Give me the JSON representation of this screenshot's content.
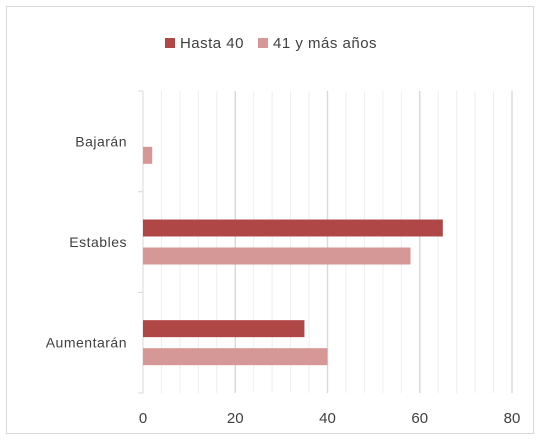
{
  "chart_data": {
    "type": "bar",
    "orientation": "horizontal",
    "categories": [
      "Bajarán",
      "Estables",
      "Aumentarán"
    ],
    "series": [
      {
        "name": "Hasta 40",
        "color": "#b04747",
        "values": [
          0,
          65,
          35
        ]
      },
      {
        "name": "41 y más años",
        "color": "#d69797",
        "values": [
          2,
          58,
          40
        ]
      }
    ],
    "xlim": [
      0,
      80
    ],
    "x_ticks": [
      "0",
      "20",
      "40",
      "60",
      "80"
    ],
    "grid": true,
    "legend_position": "top-center",
    "title": "",
    "xlabel": "",
    "ylabel": ""
  }
}
